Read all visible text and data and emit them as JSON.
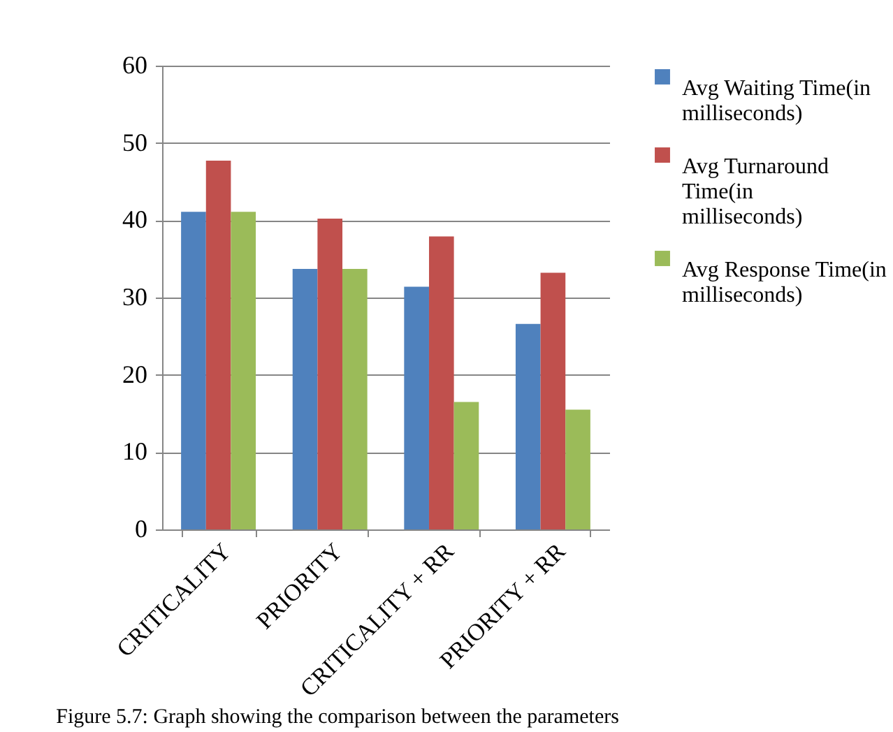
{
  "chart_data": {
    "type": "bar",
    "categories": [
      "CRITICALITY",
      "PRIORITY",
      "CRITICALITY + RR",
      "PRIORITY + RR"
    ],
    "series": [
      {
        "name": "Avg Waiting Time(in milliseconds)",
        "color": "#4f81bd",
        "values": [
          41.1,
          33.7,
          31.4,
          26.6
        ]
      },
      {
        "name": "Avg Turnaround Time(in milliseconds)",
        "color": "#c0504d",
        "values": [
          47.7,
          40.2,
          37.9,
          33.2
        ]
      },
      {
        "name": "Avg Response Time(in milliseconds)",
        "color": "#9bbb59",
        "values": [
          41.1,
          33.7,
          16.5,
          15.5
        ]
      }
    ],
    "ylim": [
      0,
      60
    ],
    "yticks": [
      0,
      10,
      20,
      30,
      40,
      50,
      60
    ],
    "grid": "y",
    "legend": "right",
    "annotations": [
      "Figure 5.7: Graph showing the comparison between the parameters"
    ]
  }
}
